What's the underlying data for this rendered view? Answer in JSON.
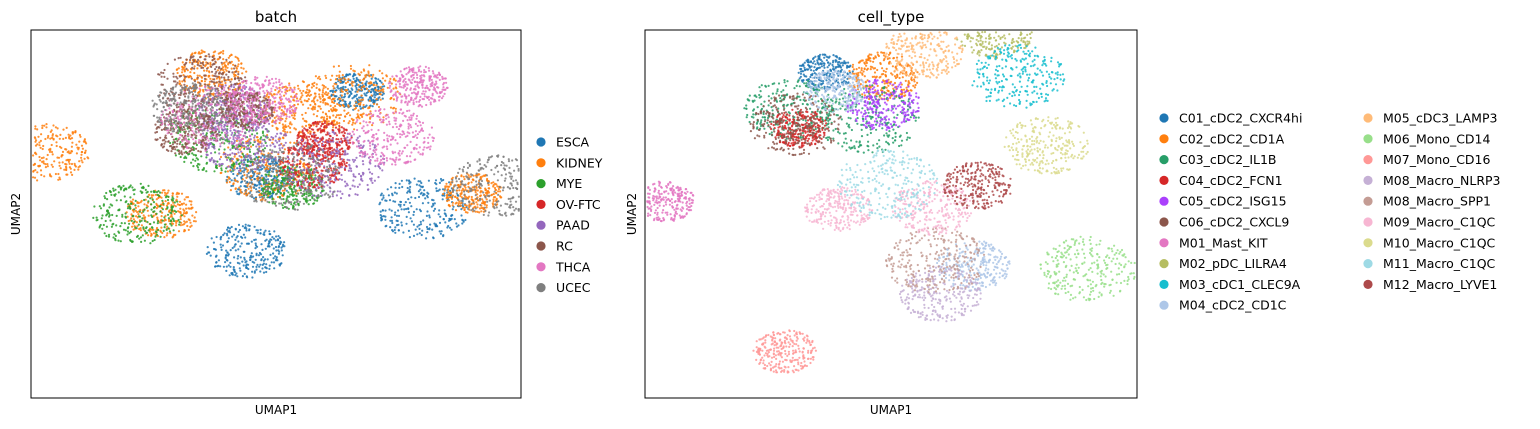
{
  "chart_data": [
    {
      "type": "scatter",
      "title": "batch",
      "xlabel": "UMAP1",
      "ylabel": "UMAP2",
      "xlim": [
        -10,
        20
      ],
      "ylim": [
        -10,
        20
      ],
      "ticks": "none",
      "grid": false,
      "legend_position": "right",
      "series": [
        {
          "name": "ESCA",
          "color": "#1f77b4",
          "regions": [
            [
              10,
              15
            ],
            [
              4,
              8
            ],
            [
              3.2,
              2
            ],
            [
              14,
              5.5
            ]
          ]
        },
        {
          "name": "KIDNEY",
          "color": "#ff7f0e",
          "regions": [
            [
              1,
              16.4
            ],
            [
              6.6,
              13.5
            ],
            [
              4.4,
              8.8
            ],
            [
              17,
              6.7
            ],
            [
              -2,
              5
            ],
            [
              -9,
              10
            ],
            [
              9.8,
              14.6
            ]
          ]
        },
        {
          "name": "MYE",
          "color": "#2ca02c",
          "regions": [
            [
              -3.5,
              5
            ],
            [
              1.5,
              11.2
            ],
            [
              6,
              7.2
            ]
          ]
        },
        {
          "name": "OV-FTC",
          "color": "#d62728",
          "regions": [
            [
              8,
              11
            ],
            [
              7.2,
              9
            ]
          ]
        },
        {
          "name": "PAAD",
          "color": "#9467bd",
          "regions": [
            [
              2.5,
              13.5
            ],
            [
              3,
              10.9
            ],
            [
              8.6,
              9
            ]
          ]
        },
        {
          "name": "RC",
          "color": "#8c564b",
          "regions": [
            [
              0.4,
              15.5
            ],
            [
              3.2,
              13.5
            ],
            [
              -0.5,
              11.7
            ]
          ]
        },
        {
          "name": "THCA",
          "color": "#e377c2",
          "regions": [
            [
              13.7,
              15.4
            ],
            [
              4.2,
              14.2
            ],
            [
              12.1,
              11.3
            ],
            [
              0.9,
              12.8
            ]
          ]
        },
        {
          "name": "UCEC",
          "color": "#7f7f7f",
          "regions": [
            [
              -0.3,
              13.6
            ],
            [
              18.5,
              7.3
            ],
            [
              5.8,
              8.1
            ]
          ]
        }
      ]
    },
    {
      "type": "scatter",
      "title": "cell_type",
      "xlabel": "UMAP1",
      "ylabel": "UMAP2",
      "xlim": [
        -10,
        20
      ],
      "ylim": [
        -10,
        20
      ],
      "ticks": "none",
      "grid": false,
      "legend_position": "right",
      "series": [
        {
          "name": "C01_cDC2_CXCR4hi",
          "color": "#1f77b4",
          "regions": [
            [
              1,
              16.5
            ]
          ]
        },
        {
          "name": "C02_cDC2_CD1A",
          "color": "#ff7f0e",
          "regions": [
            [
              4.5,
              16.2
            ]
          ]
        },
        {
          "name": "C03_cDC2_IL1B",
          "color": "#279e68",
          "regions": [
            [
              -1.2,
              13.6
            ],
            [
              3.6,
              12.7
            ]
          ]
        },
        {
          "name": "C04_cDC2_FCN1",
          "color": "#d62728",
          "regions": [
            [
              -0.6,
              12
            ]
          ]
        },
        {
          "name": "C05_cDC2_ISG15",
          "color": "#aa40fc",
          "regions": [
            [
              4.5,
              13.9
            ]
          ]
        },
        {
          "name": "C06_cDC2_CXCL9",
          "color": "#8c564b",
          "regions": [
            [
              -0.8,
              12.3
            ]
          ]
        },
        {
          "name": "M01_Mast_KIT",
          "color": "#e377c2",
          "regions": [
            [
              -8.8,
              6
            ]
          ]
        },
        {
          "name": "M02_pDC_LILRA4",
          "color": "#b5bd61",
          "regions": [
            [
              11.3,
              19.8
            ]
          ]
        },
        {
          "name": "M03_cDC1_CLEC9A",
          "color": "#17becf",
          "regions": [
            [
              12.7,
              16.2
            ]
          ]
        },
        {
          "name": "M04_cDC2_CD1C",
          "color": "#aec7e8",
          "regions": [
            [
              1.6,
              15
            ],
            [
              10,
              0.8
            ]
          ]
        },
        {
          "name": "M05_cDC3_LAMP3",
          "color": "#ffbb78",
          "regions": [
            [
              7,
              18.2
            ]
          ]
        },
        {
          "name": "M06_Mono_CD14",
          "color": "#98df8a",
          "regions": [
            [
              17,
              0.5
            ]
          ]
        },
        {
          "name": "M07_Mono_CD16",
          "color": "#ff9896",
          "regions": [
            [
              -1.5,
              -6.2
            ]
          ]
        },
        {
          "name": "M08_Macro_NLRP3",
          "color": "#c5b0d5",
          "regions": [
            [
              8,
              -1.5
            ]
          ]
        },
        {
          "name": "M08_Macro_SPP1",
          "color": "#c49c94",
          "regions": [
            [
              7.7,
              1.2
            ]
          ]
        },
        {
          "name": "M09_Macro_C1QC",
          "color": "#f7b6d2",
          "regions": [
            [
              1.8,
              5.4
            ],
            [
              7.5,
              5.5
            ]
          ]
        },
        {
          "name": "M10_Macro_C1QC",
          "color": "#dbdb8d",
          "regions": [
            [
              14.5,
              10.6
            ]
          ]
        },
        {
          "name": "M11_Macro_C1QC",
          "color": "#9edae5",
          "regions": [
            [
              4.8,
              7.4
            ]
          ]
        },
        {
          "name": "M12_Macro_LYVE1",
          "color": "#ad494a",
          "regions": [
            [
              10.3,
              7.3
            ]
          ]
        }
      ]
    }
  ]
}
